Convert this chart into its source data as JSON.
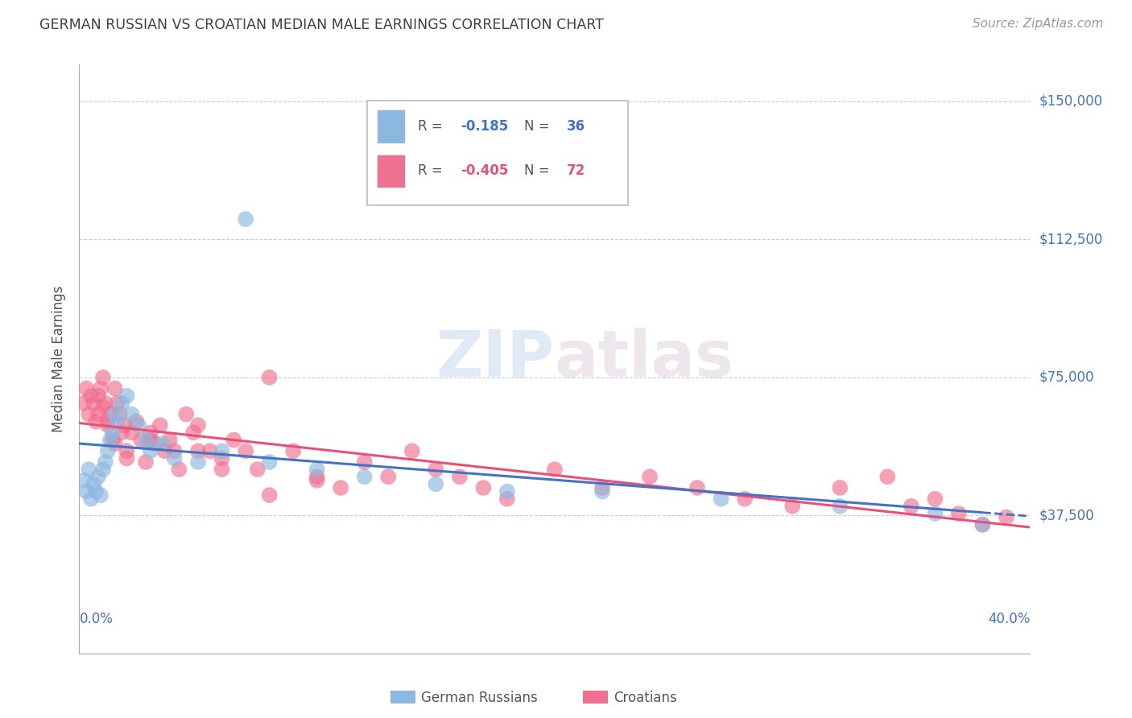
{
  "title": "GERMAN RUSSIAN VS CROATIAN MEDIAN MALE EARNINGS CORRELATION CHART",
  "source": "Source: ZipAtlas.com",
  "ylabel": "Median Male Earnings",
  "yticks": [
    0,
    37500,
    75000,
    112500,
    150000
  ],
  "ytick_labels": [
    "",
    "$37,500",
    "$75,000",
    "$112,500",
    "$150,000"
  ],
  "xmin": 0.0,
  "xmax": 0.4,
  "ymin": 18000,
  "ymax": 160000,
  "color_blue": "#8bb8e0",
  "color_pink": "#f07090",
  "color_blue_line": "#4472c4",
  "color_pink_line": "#e8507a",
  "color_axis_labels": "#4472c4",
  "color_grid": "#cccccc",
  "color_title": "#404040",
  "german_russian_x": [
    0.002,
    0.003,
    0.004,
    0.005,
    0.006,
    0.007,
    0.008,
    0.009,
    0.01,
    0.011,
    0.012,
    0.013,
    0.014,
    0.015,
    0.016,
    0.018,
    0.02,
    0.022,
    0.025,
    0.028,
    0.03,
    0.035,
    0.04,
    0.05,
    0.06,
    0.07,
    0.08,
    0.1,
    0.12,
    0.15,
    0.18,
    0.22,
    0.27,
    0.32,
    0.36,
    0.38
  ],
  "german_russian_y": [
    47000,
    44000,
    50000,
    42000,
    46000,
    44000,
    48000,
    43000,
    50000,
    52000,
    55000,
    58000,
    60000,
    65000,
    63000,
    68000,
    70000,
    65000,
    62000,
    58000,
    55000,
    57000,
    53000,
    52000,
    55000,
    118000,
    52000,
    50000,
    48000,
    46000,
    44000,
    44000,
    42000,
    40000,
    38000,
    35000
  ],
  "croatian_x": [
    0.002,
    0.003,
    0.004,
    0.005,
    0.006,
    0.007,
    0.008,
    0.009,
    0.01,
    0.011,
    0.012,
    0.013,
    0.014,
    0.015,
    0.016,
    0.017,
    0.018,
    0.019,
    0.02,
    0.022,
    0.024,
    0.026,
    0.028,
    0.03,
    0.032,
    0.034,
    0.036,
    0.038,
    0.04,
    0.042,
    0.045,
    0.048,
    0.05,
    0.055,
    0.06,
    0.065,
    0.07,
    0.075,
    0.08,
    0.09,
    0.1,
    0.11,
    0.12,
    0.13,
    0.14,
    0.15,
    0.16,
    0.17,
    0.18,
    0.2,
    0.22,
    0.24,
    0.26,
    0.28,
    0.3,
    0.32,
    0.34,
    0.35,
    0.36,
    0.37,
    0.38,
    0.39,
    0.1,
    0.08,
    0.06,
    0.05,
    0.03,
    0.02,
    0.015,
    0.012,
    0.01,
    0.008
  ],
  "croatian_y": [
    68000,
    72000,
    65000,
    70000,
    68000,
    63000,
    65000,
    72000,
    75000,
    68000,
    62000,
    65000,
    58000,
    72000,
    68000,
    65000,
    60000,
    62000,
    55000,
    60000,
    63000,
    58000,
    52000,
    60000,
    57000,
    62000,
    55000,
    58000,
    55000,
    50000,
    65000,
    60000,
    55000,
    55000,
    53000,
    58000,
    55000,
    50000,
    75000,
    55000,
    48000,
    45000,
    52000,
    48000,
    55000,
    50000,
    48000,
    45000,
    42000,
    50000,
    45000,
    48000,
    45000,
    42000,
    40000,
    45000,
    48000,
    40000,
    42000,
    38000,
    35000,
    37000,
    47000,
    43000,
    50000,
    62000,
    58000,
    53000,
    57000,
    63000,
    67000,
    70000
  ]
}
